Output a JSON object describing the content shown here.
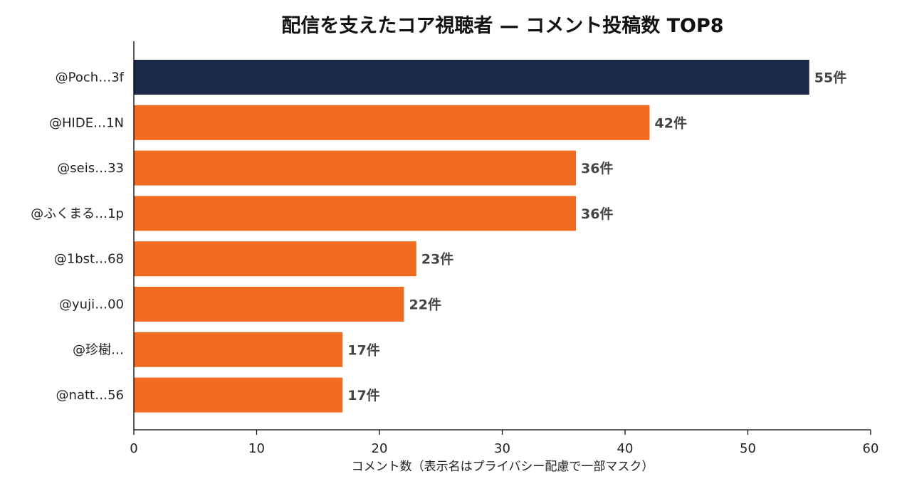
{
  "chart_data": {
    "type": "bar",
    "orientation": "horizontal",
    "title": "配信を支えたコア視聴者 — コメント投稿数 TOP8",
    "xlabel": "コメント数（表示名はプライバシー配慮で一部マスク）",
    "ylabel": "",
    "xlim": [
      0,
      60
    ],
    "xticks": [
      "0",
      "10",
      "20",
      "30",
      "40",
      "50",
      "60"
    ],
    "categories": [
      "@Poch…3f",
      "@HIDE…1N",
      "@seis…33",
      "@ふくまる…1p",
      "@1bst…68",
      "@yuji…00",
      "@珍樹…",
      "@natt…56"
    ],
    "values": [
      55,
      42,
      36,
      36,
      23,
      22,
      17,
      17
    ],
    "value_labels": [
      "55件",
      "42件",
      "36件",
      "36件",
      "23件",
      "22件",
      "17件",
      "17件"
    ],
    "colors": {
      "highlight": "#1c2a4a",
      "default": "#f26b21"
    },
    "highlight_index": 0,
    "grid": false,
    "legend": "none"
  }
}
